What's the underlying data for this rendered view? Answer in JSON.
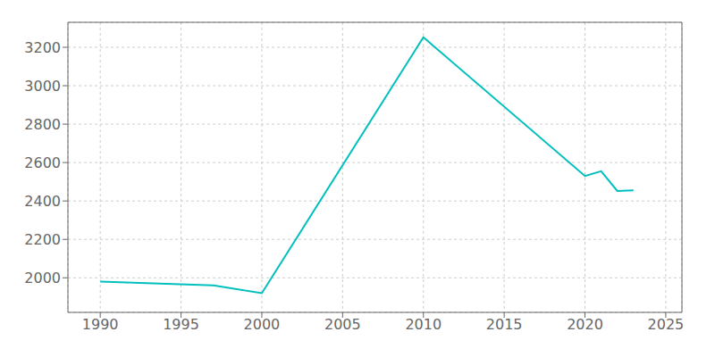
{
  "chart_data": {
    "type": "line",
    "x": [
      1990,
      1997,
      2000,
      2010,
      2020,
      2021,
      2022,
      2023
    ],
    "values": [
      1980,
      1960,
      1920,
      3252,
      2530,
      2555,
      2452,
      2455
    ],
    "color": "#00BFBF",
    "xlim": [
      1988,
      2026
    ],
    "ylim": [
      1820,
      3330
    ],
    "xticks": [
      1990,
      1995,
      2000,
      2005,
      2010,
      2015,
      2020,
      2025
    ],
    "yticks": [
      2000,
      2200,
      2400,
      2600,
      2800,
      3000,
      3200
    ],
    "grid": true
  }
}
